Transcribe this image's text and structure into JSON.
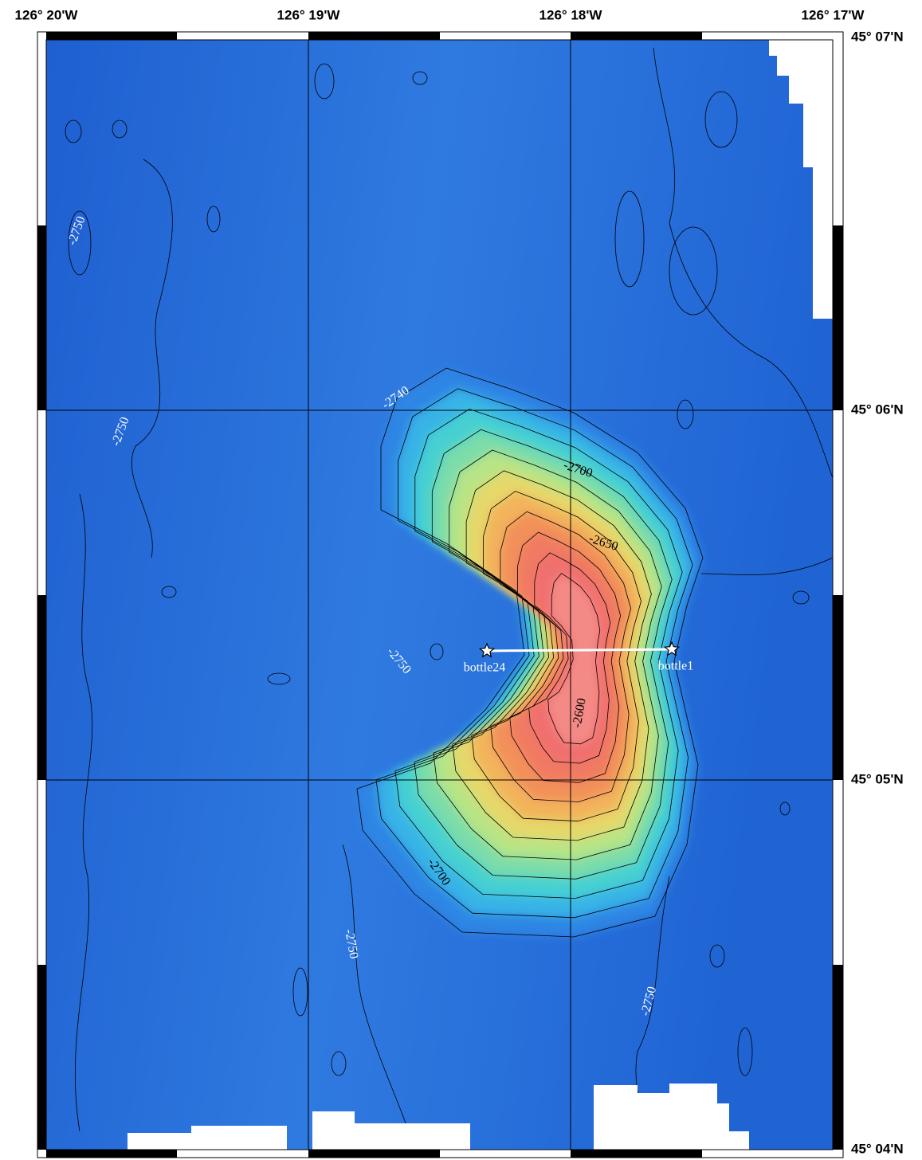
{
  "map": {
    "lon_labels": [
      "126° 20'W",
      "126° 19'W",
      "126° 18'W",
      "126° 17'W"
    ],
    "lat_labels": [
      "45° 07'N",
      "45° 06'N",
      "45° 05'N",
      "45° 04'N"
    ],
    "contour_labels": [
      -2750,
      -2750,
      -2740,
      -2700,
      -2650,
      -2750,
      -2600,
      -2700,
      -2750,
      -2750
    ],
    "stations": [
      "bottle24",
      "bottle1"
    ]
  }
}
